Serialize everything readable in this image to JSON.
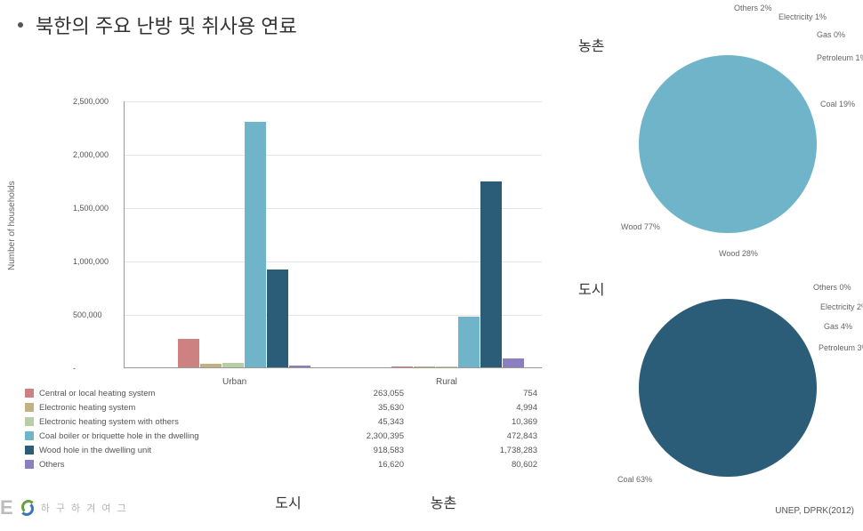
{
  "title": "북한의 주요 난방 및 취사용 연료",
  "source_text": "UNEP, DPRK(2012)",
  "logo_text_partial": "하 구 하 겨 여 그",
  "bar_chart": {
    "type": "bar",
    "y_axis_label": "Number of households",
    "ylim": [
      0,
      2500000
    ],
    "ytick_step": 500000,
    "ytick_labels": [
      "-",
      "500,000",
      "1,000,000",
      "1,500,000",
      "2,000,000",
      "2,500,000"
    ],
    "categories": [
      "Urban",
      "Rural"
    ],
    "category_labels_ko": [
      "도시",
      "농촌"
    ],
    "series": [
      {
        "label": "Central or local heating system",
        "color": "#cd8181",
        "values": [
          263055,
          754
        ]
      },
      {
        "label": "Electronic heating system",
        "color": "#c0b283",
        "values": [
          35630,
          4994
        ]
      },
      {
        "label": "Electronic heating system with others",
        "color": "#b8cfa5",
        "values": [
          45343,
          10369
        ]
      },
      {
        "label": "Coal boiler or briquette hole in the dwelling",
        "color": "#6fb4c9",
        "values": [
          2300395,
          472843
        ]
      },
      {
        "label": "Wood hole in the dwelling unit",
        "color": "#2b5d78",
        "values": [
          918583,
          1738283
        ]
      },
      {
        "label": "Others",
        "color": "#8c7fc0",
        "values": [
          16620,
          80602
        ]
      }
    ],
    "values_formatted": [
      [
        "263,055",
        "754"
      ],
      [
        "35,630",
        "4,994"
      ],
      [
        "45,343",
        "10,369"
      ],
      [
        "2,300,395",
        "472,843"
      ],
      [
        "918,583",
        "1,738,283"
      ],
      [
        "16,620",
        "80,602"
      ]
    ],
    "grid_color": "#e5e5e5",
    "axis_color": "#999999",
    "tick_fontsize": 9,
    "legend_fontsize": 9.5
  },
  "pie_rural": {
    "type": "pie",
    "title": "농촌",
    "radius": 100,
    "slices": [
      {
        "label": "Wood",
        "pct": 77,
        "color": "#6fb4c9"
      },
      {
        "label": "Coal",
        "pct": 19,
        "color": "#2b5d78"
      },
      {
        "label": "Petroleum",
        "pct": 1,
        "color": "#cd8181"
      },
      {
        "label": "Gas",
        "pct": 0,
        "color": "#b8cfa5"
      },
      {
        "label": "Electricity",
        "pct": 1,
        "color": "#8c7fc0"
      },
      {
        "label": "Others",
        "pct": 2,
        "color": "#c0b283"
      }
    ],
    "label_fontsize": 9
  },
  "pie_urban": {
    "type": "pie",
    "title": "도시",
    "radius": 100,
    "slices": [
      {
        "label": "Coal",
        "pct": 63,
        "color": "#2b5d78"
      },
      {
        "label": "Petroleum",
        "pct": 3,
        "color": "#b8cfa5"
      },
      {
        "label": "Gas",
        "pct": 4,
        "color": "#cd8181"
      },
      {
        "label": "Electricity",
        "pct": 2,
        "color": "#8c7fc0"
      },
      {
        "label": "Others",
        "pct": 0,
        "color": "#c0b283"
      },
      {
        "label": "Wood",
        "pct": 28,
        "color": "#6fb4c9"
      }
    ],
    "label_fontsize": 9
  }
}
